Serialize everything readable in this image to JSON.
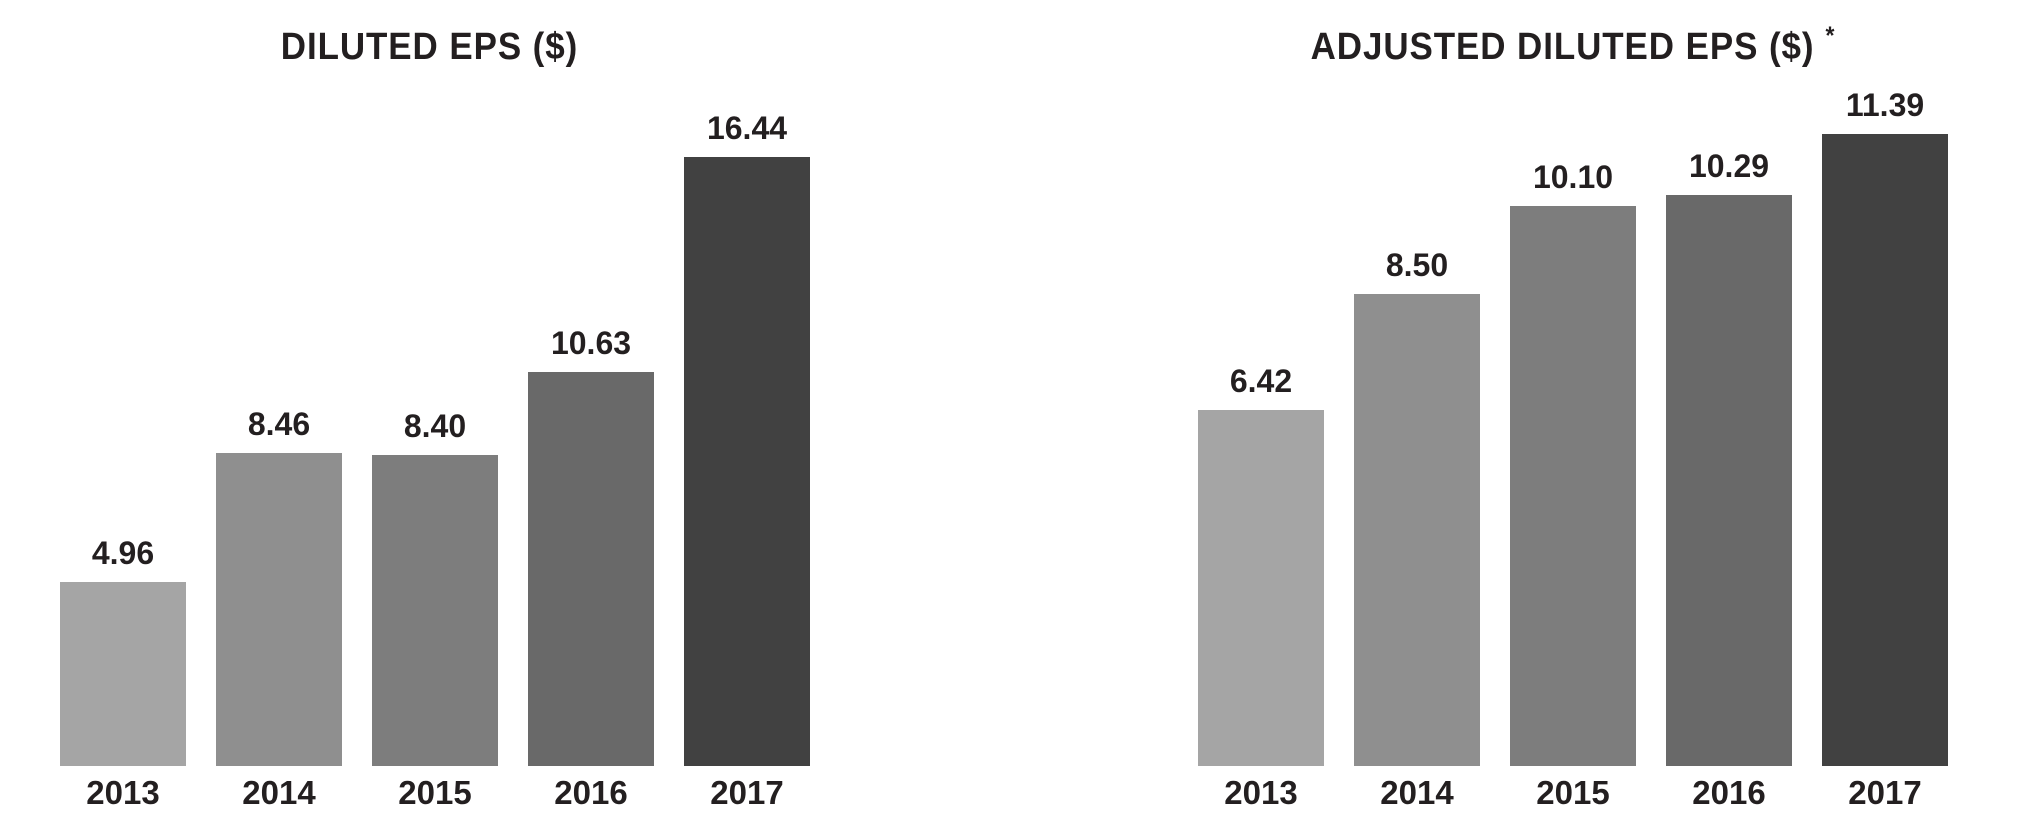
{
  "page": {
    "background": "#ffffff",
    "text_color": "#231f20"
  },
  "chart_data": [
    {
      "type": "bar",
      "title": "DILUTED EPS ($)",
      "title_suffix": "",
      "categories": [
        "2013",
        "2014",
        "2015",
        "2016",
        "2017"
      ],
      "values": [
        4.96,
        8.46,
        8.4,
        10.63,
        16.44
      ],
      "value_labels": [
        "4.96",
        "8.46",
        "8.40",
        "10.63",
        "16.44"
      ],
      "bar_colors": [
        "#a5a5a5",
        "#8f8f8f",
        "#7d7d7d",
        "#696969",
        "#414141"
      ],
      "xlabel": "",
      "ylabel": "",
      "ylim": [
        0,
        17
      ],
      "grid": false,
      "legend": "none",
      "value_label_position": "above-bar",
      "axis_lines": "none"
    },
    {
      "type": "bar",
      "title": "ADJUSTED DILUTED EPS ($)",
      "title_suffix": "*",
      "categories": [
        "2013",
        "2014",
        "2015",
        "2016",
        "2017"
      ],
      "values": [
        6.42,
        8.5,
        10.1,
        10.29,
        11.39
      ],
      "value_labels": [
        "6.42",
        "8.50",
        "10.10",
        "10.29",
        "11.39"
      ],
      "bar_colors": [
        "#a5a5a5",
        "#8f8f8f",
        "#7d7d7d",
        "#696969",
        "#414141"
      ],
      "xlabel": "",
      "ylabel": "",
      "ylim": [
        0,
        12
      ],
      "grid": false,
      "legend": "none",
      "value_label_position": "above-bar",
      "axis_lines": "none"
    }
  ]
}
